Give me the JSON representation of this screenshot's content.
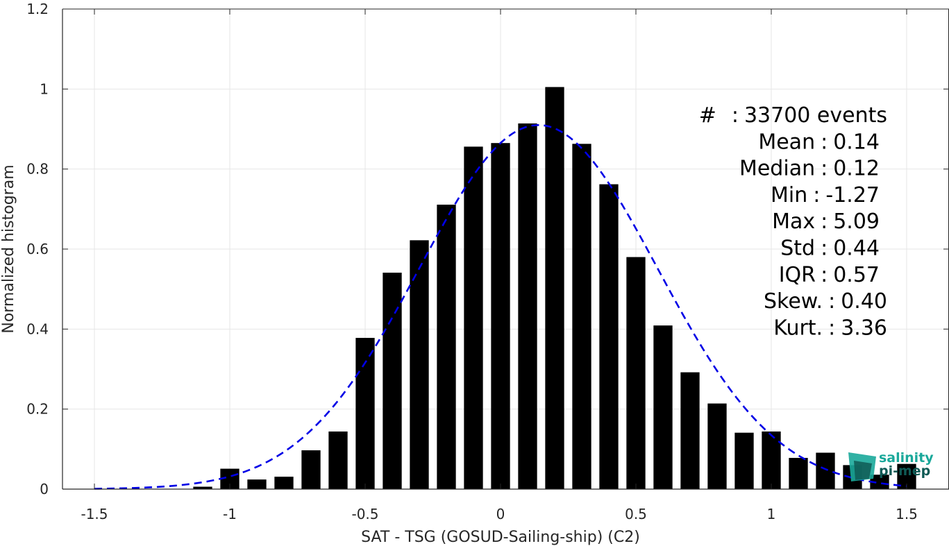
{
  "chart_data": {
    "type": "bar",
    "xlabel": "SAT - TSG (GOSUD-Sailing-ship) (C2)",
    "ylabel": "Normalized histogram",
    "xlim": [
      -1.6,
      1.6
    ],
    "ylim": [
      0,
      1.2
    ],
    "xticks": [
      -1.5,
      -1,
      -0.5,
      0,
      0.5,
      1,
      1.5
    ],
    "xtick_labels": [
      "-1.5",
      "-1",
      "-0.5",
      "0",
      "0.5",
      "1",
      "1.5"
    ],
    "yticks": [
      0,
      0.2,
      0.4,
      0.6,
      0.8,
      1,
      1.2
    ],
    "ytick_labels": [
      "0",
      "0.2",
      "0.4",
      "0.6",
      "0.8",
      "1",
      "1.2"
    ],
    "grid": true,
    "bar_width": 0.07,
    "bar_color": "#000000",
    "x": [
      -1.1,
      -1.0,
      -0.9,
      -0.8,
      -0.7,
      -0.6,
      -0.5,
      -0.4,
      -0.3,
      -0.2,
      -0.1,
      0.0,
      0.1,
      0.2,
      0.3,
      0.4,
      0.5,
      0.6,
      0.7,
      0.8,
      0.9,
      1.0,
      1.1,
      1.2,
      1.3,
      1.4,
      1.5
    ],
    "values": [
      0.006,
      0.051,
      0.024,
      0.031,
      0.097,
      0.144,
      0.378,
      0.541,
      0.622,
      0.711,
      0.856,
      0.865,
      0.914,
      1.005,
      0.863,
      0.762,
      0.58,
      0.409,
      0.292,
      0.214,
      0.141,
      0.144,
      0.078,
      0.091,
      0.06,
      0.036,
      0.063
    ],
    "fit_curve": {
      "type": "gaussian",
      "color": "#0000e6",
      "style": "dashed",
      "mean": 0.14,
      "std": 0.44,
      "peak": 0.91,
      "x_range": [
        -1.5,
        1.5
      ]
    }
  },
  "stats": [
    {
      "label": "#",
      "sep": ":",
      "value": "33700 events"
    },
    {
      "label": "Mean",
      "sep": ":",
      "value": "0.14"
    },
    {
      "label": "Median",
      "sep": ":",
      "value": "0.12"
    },
    {
      "label": "Min",
      "sep": ":",
      "value": "-1.27"
    },
    {
      "label": "Max",
      "sep": ":",
      "value": "5.09"
    },
    {
      "label": "Std",
      "sep": ":",
      "value": "0.44"
    },
    {
      "label": "IQR",
      "sep": ":",
      "value": "0.57"
    },
    {
      "label": "Skew.",
      "sep": ":",
      "value": "0.40"
    },
    {
      "label": "Kurt.",
      "sep": ":",
      "value": "3.36"
    }
  ],
  "logo": {
    "line1": "salinity",
    "line2": "pi-mep",
    "color": "#1aa89a",
    "dark_color": "#0f5a55"
  }
}
